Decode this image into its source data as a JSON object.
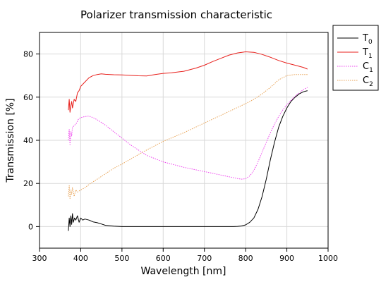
{
  "chart_data": {
    "type": "line",
    "title": "Polarizer transmission characteristic",
    "xlabel": "Wavelength [nm]",
    "ylabel": "Transmission [%]",
    "xlim": [
      300,
      1000
    ],
    "ylim": [
      -10,
      90
    ],
    "xticks": [
      300,
      400,
      500,
      600,
      700,
      800,
      900,
      1000
    ],
    "yticks": [
      0,
      20,
      40,
      60,
      80
    ],
    "grid": true,
    "legend_position": "outside-top-right",
    "series": [
      {
        "name": "T",
        "subscript": "0",
        "color": "#000000",
        "dash": "solid",
        "x": [
          370,
          372,
          374,
          376,
          378,
          380,
          382,
          385,
          388,
          392,
          396,
          400,
          405,
          410,
          420,
          430,
          440,
          450,
          460,
          480,
          500,
          550,
          600,
          650,
          700,
          750,
          770,
          780,
          790,
          800,
          810,
          820,
          830,
          840,
          850,
          860,
          870,
          880,
          890,
          900,
          910,
          920,
          930,
          940,
          950
        ],
        "y": [
          -2,
          4,
          0,
          5,
          1,
          6,
          2,
          4,
          3,
          5,
          2,
          4,
          3,
          3.5,
          3,
          2.2,
          1.8,
          1.2,
          0.6,
          0.2,
          0,
          0,
          0,
          0,
          0,
          0,
          0,
          0.1,
          0.3,
          0.8,
          2,
          4,
          8,
          14,
          22,
          31,
          39,
          46,
          51,
          55,
          58,
          60,
          61.5,
          62.5,
          63
        ]
      },
      {
        "name": "T",
        "subscript": "1",
        "color": "#e8201c",
        "dash": "solid",
        "x": [
          370,
          372,
          374,
          376,
          378,
          380,
          384,
          388,
          392,
          396,
          400,
          410,
          420,
          430,
          440,
          450,
          460,
          480,
          500,
          520,
          540,
          560,
          580,
          600,
          620,
          650,
          680,
          700,
          720,
          740,
          760,
          780,
          800,
          820,
          840,
          860,
          880,
          900,
          920,
          940,
          950
        ],
        "y": [
          54,
          59,
          53,
          56,
          58,
          55,
          59,
          58,
          62,
          63,
          65,
          67,
          69,
          70,
          70.5,
          70.8,
          70.6,
          70.4,
          70.3,
          70.1,
          69.9,
          69.8,
          70.5,
          71,
          71.3,
          72,
          73.5,
          74.8,
          76.5,
          78,
          79.5,
          80.5,
          81,
          80.8,
          79.8,
          78.5,
          77,
          75.8,
          74.8,
          73.8,
          73
        ]
      },
      {
        "name": "C",
        "subscript": "1",
        "color": "#ee44ee",
        "dash": "dotted",
        "x": [
          370,
          372,
          374,
          376,
          378,
          380,
          385,
          390,
          395,
          400,
          410,
          420,
          430,
          440,
          460,
          480,
          500,
          520,
          540,
          560,
          600,
          650,
          700,
          750,
          780,
          790,
          800,
          810,
          820,
          830,
          840,
          850,
          860,
          870,
          880,
          890,
          900,
          910,
          920,
          930,
          940,
          950
        ],
        "y": [
          40,
          45,
          38,
          44,
          42,
          46,
          47,
          48,
          50,
          50.5,
          51,
          51.2,
          50.5,
          49.5,
          47,
          44,
          41,
          38,
          35.5,
          33,
          30,
          27.5,
          25.5,
          23.5,
          22.3,
          22,
          22.2,
          23.5,
          26,
          30,
          34.5,
          39,
          43.5,
          47.5,
          51,
          54,
          56.5,
          58.5,
          60.5,
          62,
          63.5,
          64.5
        ]
      },
      {
        "name": "C",
        "subscript": "2",
        "color": "#e8a254",
        "dash": "dotted",
        "x": [
          370,
          372,
          374,
          376,
          378,
          380,
          384,
          388,
          392,
          396,
          400,
          410,
          420,
          440,
          460,
          480,
          500,
          550,
          600,
          650,
          700,
          750,
          800,
          820,
          840,
          860,
          880,
          900,
          920,
          940,
          950
        ],
        "y": [
          14,
          19,
          13,
          17,
          15,
          18,
          14,
          17,
          16,
          16.5,
          17,
          18,
          19.5,
          22,
          24.5,
          27,
          29,
          34.5,
          39.5,
          43.5,
          48,
          52.5,
          57,
          59,
          61.5,
          64.5,
          68,
          70,
          70.5,
          70.5,
          70.5
        ]
      }
    ]
  }
}
